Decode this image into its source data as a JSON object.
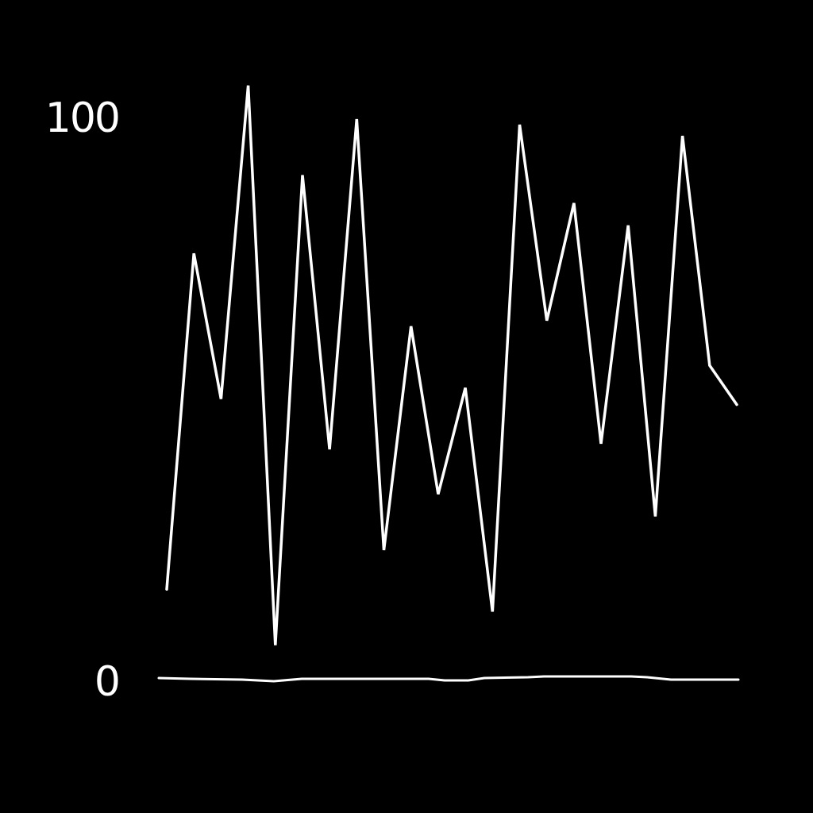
{
  "chart_data": {
    "type": "line",
    "title": "",
    "xlabel": "",
    "ylabel": "",
    "ylim": [
      0,
      100
    ],
    "yticks": [
      {
        "value": 0,
        "label": "0"
      },
      {
        "value": 100,
        "label": "100"
      }
    ],
    "grid": false,
    "legend": "none",
    "x": [
      1,
      2,
      3,
      4,
      5,
      6,
      7,
      8,
      9,
      10,
      11,
      12,
      13,
      14,
      15,
      16,
      17,
      18,
      19,
      20,
      21,
      22
    ],
    "series": [
      {
        "values": [
          16,
          76,
          50,
          106,
          6,
          90,
          41,
          100,
          23,
          63,
          33,
          52,
          12,
          99,
          64,
          85,
          42,
          81,
          29,
          97,
          56,
          49
        ]
      }
    ],
    "colors": {
      "background": "#000000",
      "line": "#ffffff",
      "text": "#ffffff"
    }
  }
}
